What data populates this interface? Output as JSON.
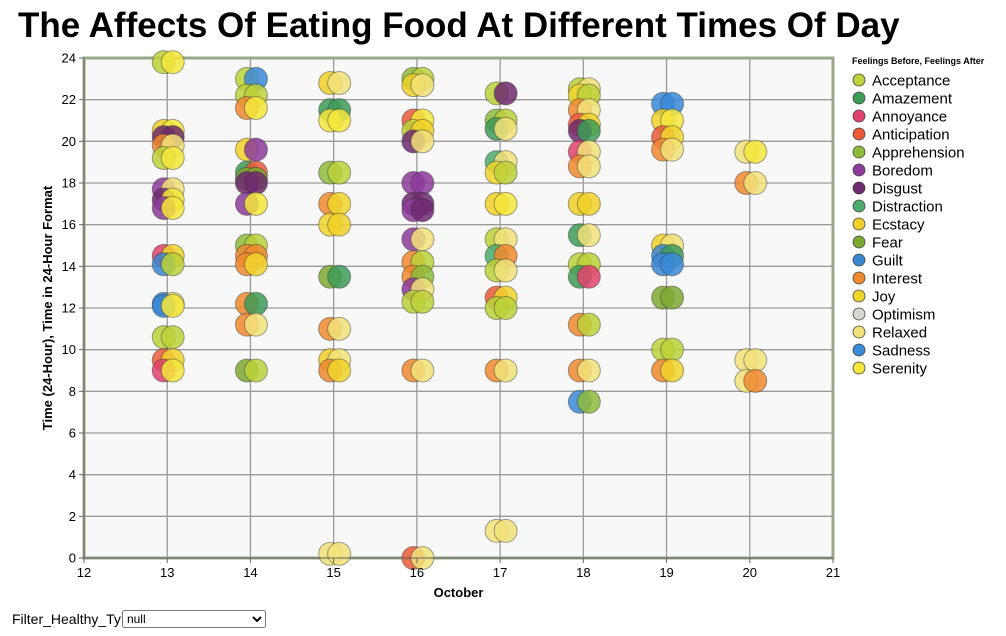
{
  "chart_data": {
    "type": "scatter",
    "title": "The Affects Of Eating Food At Different Times Of Day",
    "xlabel": "October",
    "ylabel": "Time (24-Hour), Time in 24-Hour Format",
    "xlim": [
      12,
      21
    ],
    "ylim": [
      0,
      24
    ],
    "x_ticks": [
      12,
      13,
      14,
      15,
      16,
      17,
      18,
      19,
      20,
      21
    ],
    "y_ticks": [
      0,
      2,
      4,
      6,
      8,
      10,
      12,
      14,
      16,
      18,
      20,
      22,
      24
    ],
    "grid": true,
    "legend_position": "right",
    "legend_title": "Feelings Before, Feelings After",
    "categories": [
      {
        "name": "Acceptance",
        "color": "#bcd13a"
      },
      {
        "name": "Amazement",
        "color": "#3e9b58"
      },
      {
        "name": "Annoyance",
        "color": "#e0436d"
      },
      {
        "name": "Anticipation",
        "color": "#ec5a3a"
      },
      {
        "name": "Apprehension",
        "color": "#8dbb3b"
      },
      {
        "name": "Boredom",
        "color": "#8c3b9b"
      },
      {
        "name": "Disgust",
        "color": "#6e2a6e"
      },
      {
        "name": "Distraction",
        "color": "#4dab6e"
      },
      {
        "name": "Ecstacy",
        "color": "#f0d028"
      },
      {
        "name": "Fear",
        "color": "#7ca832"
      },
      {
        "name": "Guilt",
        "color": "#3a86d1"
      },
      {
        "name": "Interest",
        "color": "#f08a30"
      },
      {
        "name": "Joy",
        "color": "#f0d52b"
      },
      {
        "name": "Optimism",
        "color": "#d6d6cf"
      },
      {
        "name": "Relaxed",
        "color": "#f2e27a"
      },
      {
        "name": "Sadness",
        "color": "#3a8ad8"
      },
      {
        "name": "Serenity",
        "color": "#f5e63c"
      }
    ],
    "points": [
      {
        "x": 13,
        "y": 23.8,
        "before": "Acceptance",
        "after": "Serenity"
      },
      {
        "x": 13,
        "y": 20.5,
        "before": "Ecstacy",
        "after": "Serenity"
      },
      {
        "x": 13,
        "y": 20.2,
        "before": "Disgust",
        "after": "Disgust"
      },
      {
        "x": 13,
        "y": 19.8,
        "before": "Interest",
        "after": "Relaxed"
      },
      {
        "x": 13,
        "y": 19.2,
        "before": "Acceptance",
        "after": "Serenity"
      },
      {
        "x": 13,
        "y": 17.7,
        "before": "Boredom",
        "after": "Relaxed"
      },
      {
        "x": 13,
        "y": 17.2,
        "before": "Disgust",
        "after": "Serenity"
      },
      {
        "x": 13,
        "y": 16.8,
        "before": "Boredom",
        "after": "Serenity"
      },
      {
        "x": 13,
        "y": 14.5,
        "before": "Annoyance",
        "after": "Joy"
      },
      {
        "x": 13,
        "y": 14.1,
        "before": "Guilt",
        "after": "Acceptance"
      },
      {
        "x": 13,
        "y": 12.2,
        "before": "Sadness",
        "after": "Relaxed"
      },
      {
        "x": 13,
        "y": 12.1,
        "before": "Guilt",
        "after": "Serenity"
      },
      {
        "x": 13,
        "y": 10.6,
        "before": "Acceptance",
        "after": "Acceptance"
      },
      {
        "x": 13,
        "y": 9.5,
        "before": "Anticipation",
        "after": "Joy"
      },
      {
        "x": 13,
        "y": 9.0,
        "before": "Annoyance",
        "after": "Serenity"
      },
      {
        "x": 14,
        "y": 23.0,
        "before": "Acceptance",
        "after": "Sadness"
      },
      {
        "x": 14,
        "y": 22.2,
        "before": "Acceptance",
        "after": "Acceptance"
      },
      {
        "x": 14,
        "y": 21.6,
        "before": "Interest",
        "after": "Serenity"
      },
      {
        "x": 14,
        "y": 19.6,
        "before": "Ecstacy",
        "after": "Boredom"
      },
      {
        "x": 14,
        "y": 18.5,
        "before": "Amazement",
        "after": "Anticipation"
      },
      {
        "x": 14,
        "y": 18.2,
        "before": "Fear",
        "after": "Fear"
      },
      {
        "x": 14,
        "y": 18.0,
        "before": "Disgust",
        "after": "Disgust"
      },
      {
        "x": 14,
        "y": 17.0,
        "before": "Boredom",
        "after": "Serenity"
      },
      {
        "x": 14,
        "y": 15.0,
        "before": "Apprehension",
        "after": "Acceptance"
      },
      {
        "x": 14,
        "y": 14.5,
        "before": "Interest",
        "after": "Interest"
      },
      {
        "x": 14,
        "y": 14.1,
        "before": "Interest",
        "after": "Joy"
      },
      {
        "x": 14,
        "y": 12.2,
        "before": "Interest",
        "after": "Amazement"
      },
      {
        "x": 14,
        "y": 11.2,
        "before": "Interest",
        "after": "Relaxed"
      },
      {
        "x": 14,
        "y": 9.0,
        "before": "Fear",
        "after": "Acceptance"
      },
      {
        "x": 15,
        "y": 22.8,
        "before": "Ecstacy",
        "after": "Relaxed"
      },
      {
        "x": 15,
        "y": 21.5,
        "before": "Amazement",
        "after": "Amazement"
      },
      {
        "x": 15,
        "y": 21.0,
        "before": "Serenity",
        "after": "Serenity"
      },
      {
        "x": 15,
        "y": 18.5,
        "before": "Apprehension",
        "after": "Acceptance"
      },
      {
        "x": 15,
        "y": 17.0,
        "before": "Interest",
        "after": "Joy"
      },
      {
        "x": 15,
        "y": 16.0,
        "before": "Joy",
        "after": "Ecstacy"
      },
      {
        "x": 15,
        "y": 13.5,
        "before": "Fear",
        "after": "Amazement"
      },
      {
        "x": 15,
        "y": 11.0,
        "before": "Interest",
        "after": "Relaxed"
      },
      {
        "x": 15,
        "y": 9.5,
        "before": "Ecstacy",
        "after": "Relaxed"
      },
      {
        "x": 15,
        "y": 9.0,
        "before": "Interest",
        "after": "Joy"
      },
      {
        "x": 15,
        "y": 0.2,
        "before": "Relaxed",
        "after": "Relaxed"
      },
      {
        "x": 16,
        "y": 23.0,
        "before": "Apprehension",
        "after": "Acceptance"
      },
      {
        "x": 16,
        "y": 22.7,
        "before": "Ecstacy",
        "after": "Relaxed"
      },
      {
        "x": 16,
        "y": 21.0,
        "before": "Anticipation",
        "after": "Serenity"
      },
      {
        "x": 16,
        "y": 20.5,
        "before": "Acceptance",
        "after": "Ecstacy"
      },
      {
        "x": 16,
        "y": 20.0,
        "before": "Disgust",
        "after": "Relaxed"
      },
      {
        "x": 16,
        "y": 18.0,
        "before": "Boredom",
        "after": "Boredom"
      },
      {
        "x": 16,
        "y": 17.0,
        "before": "Disgust",
        "after": "Disgust"
      },
      {
        "x": 16,
        "y": 16.7,
        "before": "Boredom",
        "after": "Disgust"
      },
      {
        "x": 16,
        "y": 15.3,
        "before": "Boredom",
        "after": "Relaxed"
      },
      {
        "x": 16,
        "y": 14.2,
        "before": "Interest",
        "after": "Acceptance"
      },
      {
        "x": 16,
        "y": 13.5,
        "before": "Interest",
        "after": "Apprehension"
      },
      {
        "x": 16,
        "y": 12.9,
        "before": "Boredom",
        "after": "Relaxed"
      },
      {
        "x": 16,
        "y": 12.3,
        "before": "Acceptance",
        "after": "Acceptance"
      },
      {
        "x": 16,
        "y": 9.0,
        "before": "Interest",
        "after": "Relaxed"
      },
      {
        "x": 16,
        "y": 0.0,
        "before": "Anticipation",
        "after": "Relaxed"
      },
      {
        "x": 17,
        "y": 22.3,
        "before": "Acceptance",
        "after": "Disgust"
      },
      {
        "x": 17,
        "y": 21.0,
        "before": "Apprehension",
        "after": "Acceptance"
      },
      {
        "x": 17,
        "y": 20.6,
        "before": "Amazement",
        "after": "Relaxed"
      },
      {
        "x": 17,
        "y": 19.0,
        "before": "Distraction",
        "after": "Relaxed"
      },
      {
        "x": 17,
        "y": 18.5,
        "before": "Joy",
        "after": "Acceptance"
      },
      {
        "x": 17,
        "y": 17.0,
        "before": "Ecstacy",
        "after": "Serenity"
      },
      {
        "x": 17,
        "y": 15.3,
        "before": "Acceptance",
        "after": "Relaxed"
      },
      {
        "x": 17,
        "y": 14.5,
        "before": "Distraction",
        "after": "Interest"
      },
      {
        "x": 17,
        "y": 13.8,
        "before": "Acceptance",
        "after": "Relaxed"
      },
      {
        "x": 17,
        "y": 12.5,
        "before": "Anticipation",
        "after": "Joy"
      },
      {
        "x": 17,
        "y": 12.0,
        "before": "Acceptance",
        "after": "Acceptance"
      },
      {
        "x": 17,
        "y": 9.0,
        "before": "Interest",
        "after": "Relaxed"
      },
      {
        "x": 17,
        "y": 1.3,
        "before": "Relaxed",
        "after": "Relaxed"
      },
      {
        "x": 18,
        "y": 22.5,
        "before": "Acceptance",
        "after": "Relaxed"
      },
      {
        "x": 18,
        "y": 22.2,
        "before": "Joy",
        "after": "Acceptance"
      },
      {
        "x": 18,
        "y": 21.5,
        "before": "Interest",
        "after": "Relaxed"
      },
      {
        "x": 18,
        "y": 20.8,
        "before": "Anticipation",
        "after": "Joy"
      },
      {
        "x": 18,
        "y": 20.5,
        "before": "Disgust",
        "after": "Amazement"
      },
      {
        "x": 18,
        "y": 19.5,
        "before": "Annoyance",
        "after": "Relaxed"
      },
      {
        "x": 18,
        "y": 18.8,
        "before": "Interest",
        "after": "Relaxed"
      },
      {
        "x": 18,
        "y": 17.0,
        "before": "Ecstacy",
        "after": "Ecstacy"
      },
      {
        "x": 18,
        "y": 15.5,
        "before": "Amazement",
        "after": "Relaxed"
      },
      {
        "x": 18,
        "y": 14.1,
        "before": "Acceptance",
        "after": "Acceptance"
      },
      {
        "x": 18,
        "y": 13.5,
        "before": "Amazement",
        "after": "Annoyance"
      },
      {
        "x": 18,
        "y": 11.2,
        "before": "Interest",
        "after": "Acceptance"
      },
      {
        "x": 18,
        "y": 9.0,
        "before": "Interest",
        "after": "Relaxed"
      },
      {
        "x": 18,
        "y": 7.5,
        "before": "Sadness",
        "after": "Apprehension"
      },
      {
        "x": 19,
        "y": 21.8,
        "before": "Sadness",
        "after": "Sadness"
      },
      {
        "x": 19,
        "y": 21.0,
        "before": "Ecstacy",
        "after": "Serenity"
      },
      {
        "x": 19,
        "y": 20.2,
        "before": "Anticipation",
        "after": "Joy"
      },
      {
        "x": 19,
        "y": 19.6,
        "before": "Interest",
        "after": "Relaxed"
      },
      {
        "x": 19,
        "y": 15.0,
        "before": "Ecstacy",
        "after": "Relaxed"
      },
      {
        "x": 19,
        "y": 14.5,
        "before": "Guilt",
        "after": "Amazement"
      },
      {
        "x": 19,
        "y": 14.1,
        "before": "Guilt",
        "after": "Sadness"
      },
      {
        "x": 19,
        "y": 12.5,
        "before": "Fear",
        "after": "Fear"
      },
      {
        "x": 19,
        "y": 10.0,
        "before": "Acceptance",
        "after": "Acceptance"
      },
      {
        "x": 19,
        "y": 9.0,
        "before": "Interest",
        "after": "Joy"
      },
      {
        "x": 20,
        "y": 19.5,
        "before": "Relaxed",
        "after": "Serenity"
      },
      {
        "x": 20,
        "y": 18.0,
        "before": "Interest",
        "after": "Relaxed"
      },
      {
        "x": 20,
        "y": 9.5,
        "before": "Relaxed",
        "after": "Relaxed"
      },
      {
        "x": 20,
        "y": 8.5,
        "before": "Relaxed",
        "after": "Interest"
      }
    ]
  },
  "filter": {
    "label": "Filter_Healthy_Ty",
    "selected": "null"
  }
}
